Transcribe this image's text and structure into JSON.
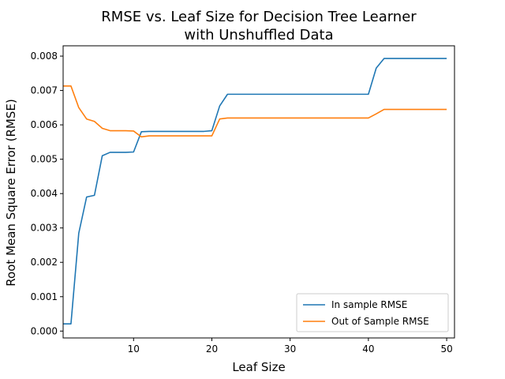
{
  "chart_data": {
    "type": "line",
    "title_line1": "RMSE vs. Leaf Size for Decision Tree Learner",
    "title_line2": "with Unshuffled Data",
    "xlabel": "Leaf Size",
    "ylabel": "Root Mean Square Error (RMSE)",
    "xlim": [
      1,
      51
    ],
    "ylim": [
      -0.0002,
      0.0083
    ],
    "xticks": [
      10,
      20,
      30,
      40,
      50
    ],
    "xtick_labels": [
      "10",
      "20",
      "30",
      "40",
      "50"
    ],
    "yticks": [
      0.0,
      0.001,
      0.002,
      0.003,
      0.004,
      0.005,
      0.006,
      0.007,
      0.008
    ],
    "ytick_labels": [
      "0.000",
      "0.001",
      "0.002",
      "0.003",
      "0.004",
      "0.005",
      "0.006",
      "0.007",
      "0.008"
    ],
    "legend_position": "lower-right",
    "grid": false,
    "x": [
      1,
      2,
      3,
      4,
      5,
      6,
      7,
      8,
      9,
      10,
      11,
      12,
      13,
      14,
      15,
      16,
      17,
      18,
      19,
      20,
      21,
      22,
      23,
      24,
      25,
      26,
      27,
      28,
      29,
      30,
      31,
      32,
      33,
      34,
      35,
      36,
      37,
      38,
      39,
      40,
      41,
      42,
      43,
      44,
      45,
      46,
      47,
      48,
      49,
      50
    ],
    "series": [
      {
        "name": "In sample RMSE",
        "color": "#1f77b4",
        "values": [
          0.00021,
          0.00021,
          0.00285,
          0.0039,
          0.00395,
          0.0051,
          0.0052,
          0.0052,
          0.0052,
          0.00521,
          0.0058,
          0.00581,
          0.00581,
          0.00581,
          0.00581,
          0.00581,
          0.00581,
          0.00581,
          0.00581,
          0.00583,
          0.00655,
          0.00689,
          0.00689,
          0.00689,
          0.00689,
          0.00689,
          0.00689,
          0.00689,
          0.00689,
          0.00689,
          0.00689,
          0.00689,
          0.00689,
          0.00689,
          0.00689,
          0.00689,
          0.00689,
          0.00689,
          0.00689,
          0.00689,
          0.00765,
          0.00793,
          0.00793,
          0.00793,
          0.00793,
          0.00793,
          0.00793,
          0.00793,
          0.00793,
          0.00793
        ]
      },
      {
        "name": "Out of Sample RMSE",
        "color": "#ff7f0e",
        "values": [
          0.00713,
          0.00713,
          0.0065,
          0.00617,
          0.0061,
          0.0059,
          0.00583,
          0.00583,
          0.00583,
          0.00582,
          0.00565,
          0.00568,
          0.00568,
          0.00568,
          0.00568,
          0.00568,
          0.00568,
          0.00568,
          0.00568,
          0.00568,
          0.00617,
          0.0062,
          0.0062,
          0.0062,
          0.0062,
          0.0062,
          0.0062,
          0.0062,
          0.0062,
          0.0062,
          0.0062,
          0.0062,
          0.0062,
          0.0062,
          0.0062,
          0.0062,
          0.0062,
          0.0062,
          0.0062,
          0.0062,
          0.00632,
          0.00645,
          0.00645,
          0.00645,
          0.00645,
          0.00645,
          0.00645,
          0.00645,
          0.00645,
          0.00645
        ]
      }
    ]
  }
}
